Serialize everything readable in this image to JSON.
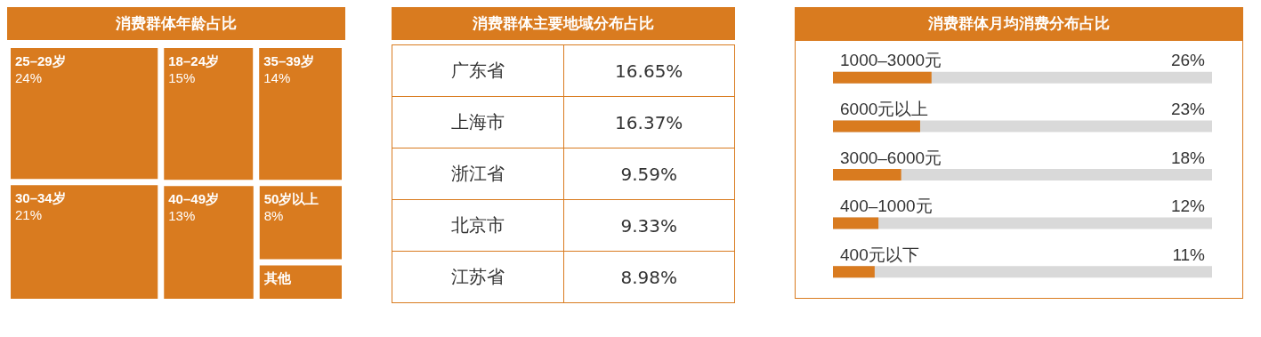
{
  "chart_data": [
    {
      "type": "other",
      "title": "消费群体年龄占比",
      "categories": [
        "25–29岁",
        "30–34岁",
        "18–24岁",
        "40–49岁",
        "35–39岁",
        "50岁以上",
        "其他"
      ],
      "values": [
        24,
        21,
        15,
        13,
        14,
        8,
        null
      ],
      "value_labels": [
        "24%",
        "21%",
        "15%",
        "13%",
        "14%",
        "8%",
        null
      ],
      "color": "#d97b1f"
    },
    {
      "type": "other",
      "title": "消费群体主要地域分布占比",
      "categories": [
        "广东省",
        "上海市",
        "浙江省",
        "北京市",
        "江苏省"
      ],
      "value_labels": [
        "16.65%",
        "16.37%",
        "9.59%",
        "9.33%",
        "8.98%"
      ],
      "color": "#d97b1f"
    },
    {
      "type": "bar",
      "orientation": "horizontal",
      "title": "消费群体月均消费分布占比",
      "categories": [
        "1000–3000元",
        "6000元以上",
        "3000–6000元",
        "400–1000元",
        "400元以下"
      ],
      "values": [
        26,
        23,
        18,
        12,
        11
      ],
      "value_labels": [
        "26%",
        "23%",
        "18%",
        "12%",
        "11%"
      ],
      "xlim": [
        0,
        100
      ],
      "color": "#d97b1f",
      "tick_labels": "y"
    }
  ]
}
